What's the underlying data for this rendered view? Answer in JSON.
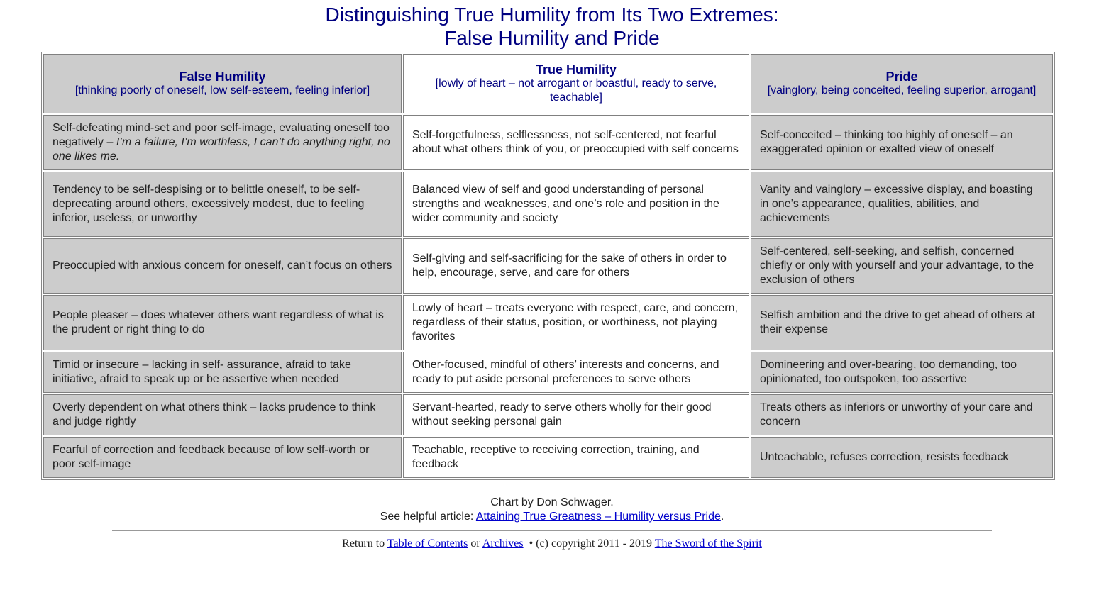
{
  "title_line1": "Distinguishing True Humility from Its Two Extremes:",
  "title_line2": "False Humility and Pride",
  "headers": [
    {
      "title": "False Humility",
      "sub": "[thinking poorly of oneself, low self-esteem, feeling inferior]"
    },
    {
      "title": "True Humility",
      "sub": "[lowly of heart – not arrogant or boastful, ready to serve, teachable]"
    },
    {
      "title": "Pride",
      "sub": "[vainglory, being conceited, feeling superior, arrogant]"
    }
  ],
  "rows": [
    {
      "false": "Self-defeating mind-set and poor self-image, evaluating oneself too negatively – ",
      "false_italic": "I’m a failure, I’m worthless, I can’t do anything right, no one likes me.",
      "true": "Self-forgetfulness, selflessness, not self-centered, not fearful about what others think of you, or preoccupied with self concerns",
      "pride": "Self-conceited – thinking too highly of oneself – an exaggerated opinion or exalted view of oneself"
    },
    {
      "false": "Tendency to be self-despising or to belittle oneself, to be self-deprecating around others, excessively modest, due to feeling inferior, useless, or unworthy",
      "true": "Balanced view of self and good understanding of personal strengths and weaknesses, and one’s role and position in the wider community and society",
      "pride": "Vanity and vainglory – excessive display, and boasting in one’s appearance, qualities, abilities, and achievements"
    },
    {
      "false": "Preoccupied with anxious concern for oneself, can’t focus on others",
      "true": "Self-giving and self-sacrificing for the sake of others in order to help, encourage, serve, and care for others",
      "pride": "Self-centered, self-seeking, and selfish, concerned chiefly or only with yourself and your advantage, to the exclusion of others"
    },
    {
      "false": "People pleaser – does whatever others want regardless of what is the prudent or right thing to do",
      "true": "Lowly of heart – treats everyone with respect, care, and concern, regardless of their status, position, or worthiness, not playing favorites",
      "pride": "Selfish ambition and the drive to get ahead of others at their expense"
    },
    {
      "false": "Timid or insecure – lacking in self- assurance, afraid to take initiative, afraid to speak up or be assertive when needed",
      "true": "Other-focused, mindful of others’ interests and concerns, and ready to put aside personal preferences to serve others",
      "pride": "Domineering and over-bearing, too demanding, too opinionated, too outspoken, too assertive"
    },
    {
      "false": "Overly dependent on what others think – lacks prudence to think and judge rightly",
      "true": "Servant-hearted, ready to serve others wholly for their good without seeking personal gain",
      "pride": "Treats others as inferiors or unworthy of your care and concern"
    },
    {
      "false": "Fearful of correction and feedback because of low self-worth or poor self-image",
      "true": "Teachable, receptive to receiving correction, training, and feedback",
      "pride": "Unteachable, refuses correction, resists feedback"
    }
  ],
  "footer": {
    "credit": "Chart by Don Schwager.",
    "article_prefix": "See helpful article: ",
    "article_link": "Attaining True Greatness – Humility versus Pride",
    "article_suffix": ".",
    "return_prefix": "Return to ",
    "toc_link": "Table of Contents",
    "or": " or ",
    "archives_link": "Archives",
    "copyright": "  • (c) copyright 2011 - 2019 ",
    "site_link": "The Sword of the Spirit"
  }
}
